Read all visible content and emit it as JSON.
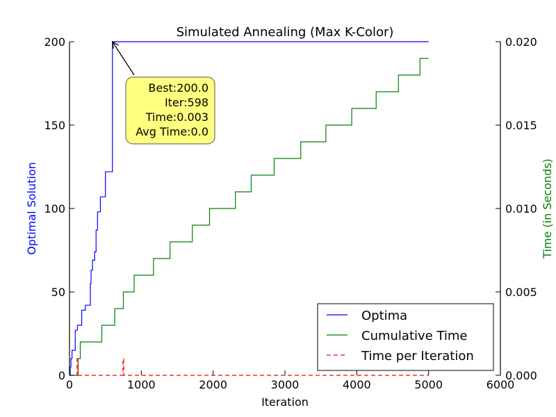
{
  "chart_data": {
    "type": "line",
    "title": "Simulated Annealing (Max K-Color)",
    "xlabel": "Iteration",
    "ylabel_left": "Optimal Solution",
    "ylabel_right": "Time (in Seconds)",
    "xlim": [
      0,
      6000
    ],
    "ylim_left": [
      0,
      200
    ],
    "ylim_right": [
      0,
      0.02
    ],
    "x_ticks": [
      0,
      1000,
      2000,
      3000,
      4000,
      5000,
      6000
    ],
    "x_tick_labels": [
      "0",
      "1000",
      "2000",
      "3000",
      "4000",
      "5000",
      "6000"
    ],
    "y_left_ticks": [
      0,
      50,
      100,
      150,
      200
    ],
    "y_left_tick_labels": [
      "0",
      "50",
      "100",
      "150",
      "200"
    ],
    "y_right_ticks": [
      0,
      0.005,
      0.01,
      0.015,
      0.02
    ],
    "y_right_tick_labels": [
      "0.000",
      "0.005",
      "0.010",
      "0.015",
      "0.020"
    ],
    "grid": false,
    "legend_position": "bottom-right",
    "colors": {
      "optima": "#0000ff",
      "cumulative_time": "#008000",
      "time_per_iteration": "#ff0000",
      "annotation_fill": "#ffff80"
    },
    "series": [
      {
        "name": "Optima",
        "axis": "left",
        "style": "solid",
        "color": "#0000ff",
        "x": [
          0,
          10,
          20,
          35,
          60,
          80,
          100,
          110,
          140,
          170,
          220,
          290,
          300,
          320,
          350,
          370,
          390,
          430,
          470,
          500,
          540,
          590,
          598,
          5000
        ],
        "y": [
          0,
          5,
          10,
          15,
          15,
          27,
          27,
          30,
          30,
          39,
          42,
          55,
          63,
          69,
          74,
          87,
          98,
          107,
          107,
          122,
          122,
          122,
          200,
          200
        ]
      },
      {
        "name": "Cumulative Time",
        "axis": "right",
        "style": "solid",
        "color": "#008000",
        "x": [
          0,
          100,
          120,
          150,
          450,
          630,
          750,
          900,
          1170,
          1400,
          1710,
          1950,
          2310,
          2530,
          2850,
          3220,
          3570,
          3930,
          4270,
          4580,
          4880,
          5000
        ],
        "y": [
          0,
          0,
          0.001,
          0.002,
          0.003,
          0.004,
          0.005,
          0.006,
          0.007,
          0.008,
          0.009,
          0.01,
          0.011,
          0.012,
          0.013,
          0.014,
          0.015,
          0.016,
          0.017,
          0.018,
          0.019,
          0.019
        ]
      },
      {
        "name": "Time per Iteration",
        "axis": "right",
        "style": "dashed",
        "color": "#ff0000",
        "x": [
          0,
          100,
          105,
          115,
          120,
          740,
          745,
          750,
          755,
          5000
        ],
        "y": [
          0,
          0,
          0.001,
          0.001,
          0,
          0,
          0.001,
          0.001,
          0,
          0
        ]
      }
    ],
    "annotation": {
      "lines": [
        "Best:200.0",
        "Iter:598",
        "Time:0.003",
        "Avg Time:0.0"
      ],
      "point": {
        "x": 598,
        "y": 200
      }
    }
  }
}
